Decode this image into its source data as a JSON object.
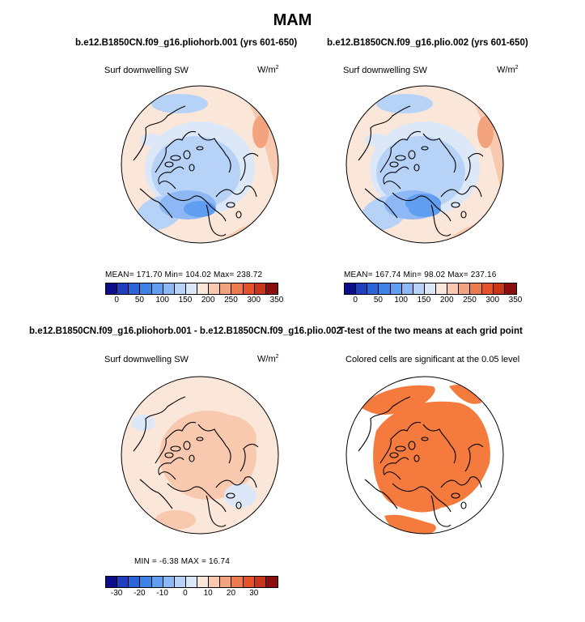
{
  "title": "MAM",
  "panels": [
    {
      "title": "b.e12.B1850CN.f09_g16.pliohorb.001 (yrs 601-650)",
      "variable": "Surf downwelling SW",
      "units": "W/m",
      "units_exp": "2",
      "stats": "MEAN= 171.70   Min= 104.02   Max= 238.72"
    },
    {
      "title": "b.e12.B1850CN.f09_g16.plio.002 (yrs 601-650)",
      "variable": "Surf downwelling SW",
      "units": "W/m",
      "units_exp": "2",
      "stats": "MEAN= 167.74   Min=  98.02   Max= 237.16"
    },
    {
      "title": "b.e12.B1850CN.f09_g16.pliohorb.001 - b.e12.B1850CN.f09_g16.plio.002",
      "variable": "Surf downwelling SW",
      "units": "W/m",
      "units_exp": "2",
      "stats": "MIN =  -6.38  MAX =  16.74"
    },
    {
      "title": "T-test of the two means at each grid point",
      "subtitle": "Colored cells are significant at the 0.05 level"
    }
  ],
  "chart_data": [
    {
      "type": "heatmap",
      "projection": "north-polar-stereographic",
      "title": "b.e12.B1850CN.f09_g16.pliohorb.001 (yrs 601-650)",
      "variable": "Surf downwelling SW",
      "units": "W/m2",
      "mean": 171.7,
      "min": 104.02,
      "max": 238.72,
      "colorbar": {
        "levels": [
          0,
          25,
          50,
          75,
          100,
          125,
          150,
          175,
          200,
          225,
          250,
          275,
          300,
          325,
          350
        ],
        "tick_labels": [
          "0",
          "50",
          "100",
          "150",
          "200",
          "250",
          "300",
          "350"
        ]
      }
    },
    {
      "type": "heatmap",
      "projection": "north-polar-stereographic",
      "title": "b.e12.B1850CN.f09_g16.plio.002 (yrs 601-650)",
      "variable": "Surf downwelling SW",
      "units": "W/m2",
      "mean": 167.74,
      "min": 98.02,
      "max": 237.16,
      "colorbar": {
        "levels": [
          0,
          25,
          50,
          75,
          100,
          125,
          150,
          175,
          200,
          225,
          250,
          275,
          300,
          325,
          350
        ],
        "tick_labels": [
          "0",
          "50",
          "100",
          "150",
          "200",
          "250",
          "300",
          "350"
        ]
      }
    },
    {
      "type": "heatmap",
      "projection": "north-polar-stereographic",
      "title": "b.e12.B1850CN.f09_g16.pliohorb.001 - b.e12.B1850CN.f09_g16.plio.002",
      "variable": "Surf downwelling SW",
      "units": "W/m2",
      "min": -6.38,
      "max": 16.74,
      "colorbar": {
        "levels": [
          -35,
          -30,
          -25,
          -20,
          -15,
          -10,
          -5,
          0,
          5,
          10,
          15,
          20,
          25,
          30,
          35
        ],
        "tick_labels": [
          "-30",
          "-20",
          "-10",
          "0",
          "10",
          "20",
          "30"
        ]
      }
    },
    {
      "type": "heatmap",
      "projection": "north-polar-stereographic",
      "title": "T-test of the two means at each grid point",
      "subtitle": "Colored cells are significant at the 0.05 level",
      "significance_level": 0.05
    }
  ],
  "colors": {
    "abs_palette": [
      "#0d0d8c",
      "#1f3fbf",
      "#2b63d9",
      "#3d82e6",
      "#5f9ef0",
      "#8db8f5",
      "#b7d2f7",
      "#dce8f8",
      "#fbe6da",
      "#f8c9ae",
      "#f3a47e",
      "#ee7a4f",
      "#e65328",
      "#c9341a",
      "#8c0d0d"
    ],
    "diff_palette": [
      "#0d0d8c",
      "#1f3fbf",
      "#2b63d9",
      "#3d82e6",
      "#5f9ef0",
      "#8db8f5",
      "#b7d2f7",
      "#dce8f8",
      "#fbe6da",
      "#f8c9ae",
      "#f3a47e",
      "#ee7a4f",
      "#e65328",
      "#c9341a",
      "#8c0d0d"
    ],
    "significant": "#f57a3d"
  }
}
